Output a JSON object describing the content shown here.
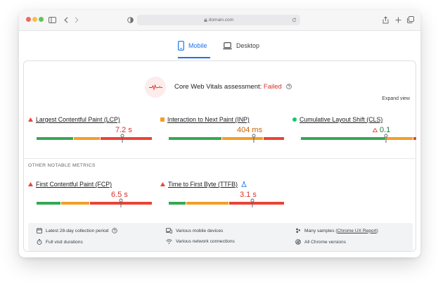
{
  "browser": {
    "url": "domain.com"
  },
  "tabs": [
    {
      "label": "Mobile",
      "active": true
    },
    {
      "label": "Desktop",
      "active": false
    }
  ],
  "assessment": {
    "prefix": "Core Web Vitals assessment: ",
    "status": "Failed",
    "expand_label": "Expand view"
  },
  "core_metrics": [
    {
      "name": "Largest Contentful Paint (LCP)",
      "value": "7.2 s",
      "rating": "poor"
    },
    {
      "name": "Interaction to Next Paint (INP)",
      "value": "404 ms",
      "rating": "needs-improvement"
    },
    {
      "name": "Cumulative Layout Shift (CLS)",
      "value": "0.1",
      "rating": "good"
    }
  ],
  "other_heading": "OTHER NOTABLE METRICS",
  "other_metrics": [
    {
      "name": "First Contentful Paint (FCP)",
      "value": "6.5 s",
      "rating": "poor"
    },
    {
      "name": "Time to First Byte (TTFB)",
      "value": "3.1 s",
      "rating": "poor"
    }
  ],
  "info": {
    "collection_period": "Latest 28-day collection period",
    "visit_durations": "Full visit durations",
    "devices": "Various mobile devices",
    "connections": "Various network connections",
    "samples_prefix": "Many samples (",
    "samples_link": "Chrome UX Report",
    "samples_suffix": ")",
    "versions": "All Chrome versions"
  },
  "colors": {
    "accent": "#1a73e8",
    "poor": "#d93025",
    "needs_improvement": "#c5630b",
    "good": "#188038"
  }
}
